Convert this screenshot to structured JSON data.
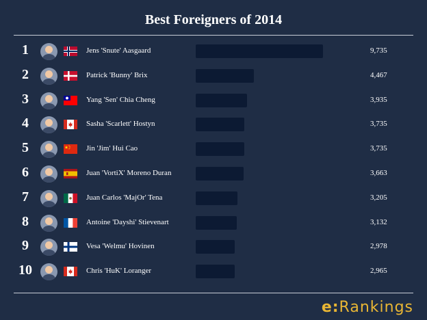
{
  "title": "Best Foreigners of 2014",
  "brand": {
    "prefix": "e:",
    "name": "Rankings"
  },
  "colors": {
    "background": "#1f2d45",
    "bar": "#0c1a33",
    "brand": "#e9b634"
  },
  "chart_data": {
    "type": "bar",
    "orientation": "horizontal",
    "title": "Best Foreigners of 2014",
    "xlabel": "",
    "ylabel": "",
    "categories": [
      "Jens 'Snute' Aasgaard",
      "Patrick 'Bunny' Brix",
      "Yang 'Sen' Chia Cheng",
      "Sasha 'Scarlett' Hostyn",
      "Jin 'Jim' Hui Cao",
      "Juan 'VortiX' Moreno Duran",
      "Juan Carlos 'MajOr' Tena",
      "Antoine 'Dayshi' Stievenart",
      "Vesa 'Welmu' Hovinen",
      "Chris 'HuK' Loranger"
    ],
    "ranks": [
      "1",
      "2",
      "3",
      "4",
      "5",
      "6",
      "7",
      "8",
      "9",
      "10"
    ],
    "values": [
      9735,
      4467,
      3935,
      3735,
      3735,
      3663,
      3205,
      3132,
      2978,
      2965
    ],
    "value_labels": [
      "9,735",
      "4,467",
      "3,935",
      "3,735",
      "3,735",
      "3,663",
      "3,205",
      "3,132",
      "2,978",
      "2,965"
    ],
    "flags": [
      "norway",
      "denmark",
      "taiwan",
      "canada",
      "china",
      "spain",
      "mexico",
      "france",
      "finland",
      "canada"
    ],
    "xlim": [
      0,
      9735
    ]
  }
}
